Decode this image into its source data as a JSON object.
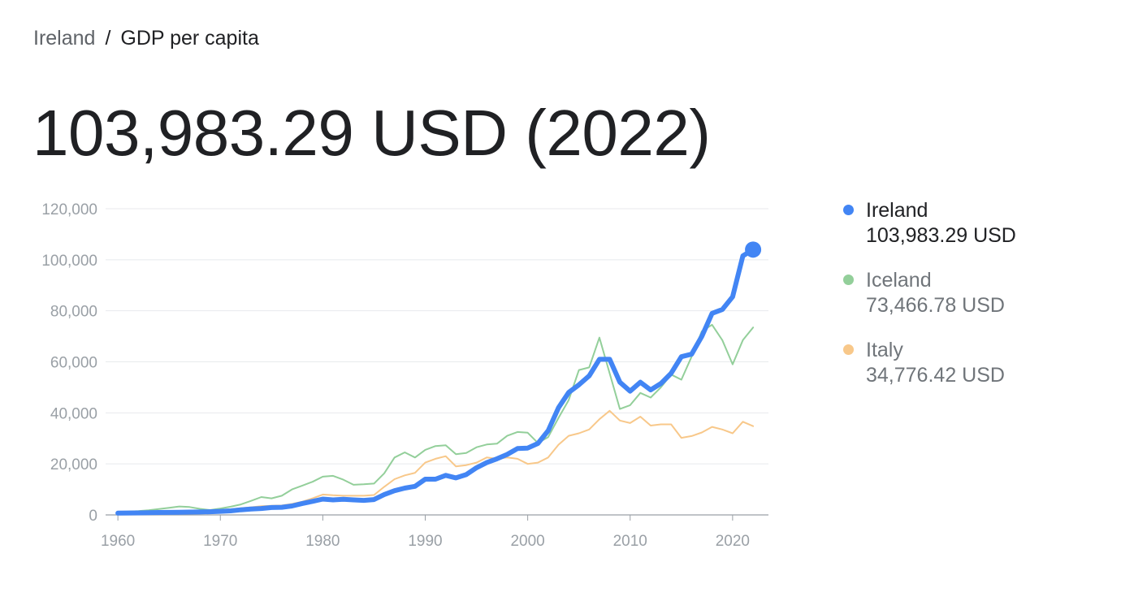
{
  "breadcrumb": {
    "country": "Ireland",
    "separator": "/",
    "metric": "GDP per capita"
  },
  "headline": "103,983.29 USD (2022)",
  "legend": [
    {
      "name": "Ireland",
      "value": "103,983.29 USD",
      "color": "#4285f4",
      "active": true
    },
    {
      "name": "Iceland",
      "value": "73,466.78 USD",
      "color": "#93cf9a",
      "active": false
    },
    {
      "name": "Italy",
      "value": "34,776.42 USD",
      "color": "#f8c88a",
      "active": false
    }
  ],
  "chart_data": {
    "type": "line",
    "x": [
      1960,
      1961,
      1962,
      1963,
      1964,
      1965,
      1966,
      1967,
      1968,
      1969,
      1970,
      1971,
      1972,
      1973,
      1974,
      1975,
      1976,
      1977,
      1978,
      1979,
      1980,
      1981,
      1982,
      1983,
      1984,
      1985,
      1986,
      1987,
      1988,
      1989,
      1990,
      1991,
      1992,
      1993,
      1994,
      1995,
      1996,
      1997,
      1998,
      1999,
      2000,
      2001,
      2002,
      2003,
      2004,
      2005,
      2006,
      2007,
      2008,
      2009,
      2010,
      2011,
      2012,
      2013,
      2014,
      2015,
      2016,
      2017,
      2018,
      2019,
      2020,
      2021,
      2022
    ],
    "xticks": [
      1960,
      1970,
      1980,
      1990,
      2000,
      2010,
      2020
    ],
    "ylim": [
      0,
      120000
    ],
    "yticks": [
      0,
      20000,
      40000,
      60000,
      80000,
      100000,
      120000
    ],
    "ytick_labels": [
      "0",
      "20,000",
      "40,000",
      "60,000",
      "80,000",
      "100,000",
      "120,000"
    ],
    "grid": true,
    "legend_position": "right",
    "series": [
      {
        "name": "Iceland",
        "color": "#93cf9a",
        "values": [
          1100,
          1300,
          1500,
          1800,
          2300,
          2800,
          3300,
          3100,
          2400,
          1900,
          2500,
          3200,
          4100,
          5500,
          7000,
          6500,
          7500,
          10000,
          11500,
          13000,
          15000,
          15300,
          13800,
          11800,
          12000,
          12300,
          16300,
          22500,
          24500,
          22500,
          25500,
          27000,
          27300,
          23800,
          24300,
          26500,
          27600,
          27900,
          31000,
          32500,
          32200,
          28200,
          30500,
          38000,
          45000,
          56800,
          57800,
          69500,
          55500,
          41500,
          43000,
          47800,
          46000,
          50000,
          55000,
          53000,
          62000,
          72000,
          74500,
          68500,
          59000,
          68500,
          73466.78
        ]
      },
      {
        "name": "Italy",
        "color": "#f8c88a",
        "values": [
          800,
          900,
          1000,
          1100,
          1200,
          1300,
          1400,
          1500,
          1600,
          1750,
          2000,
          2200,
          2600,
          3000,
          3400,
          3600,
          3700,
          4300,
          5200,
          6500,
          8000,
          7700,
          7500,
          7500,
          7500,
          7800,
          11000,
          14000,
          15500,
          16500,
          20500,
          22000,
          23000,
          19000,
          19500,
          20500,
          22500,
          22000,
          22500,
          22000,
          20000,
          20500,
          22500,
          27500,
          31000,
          32000,
          33500,
          37500,
          40800,
          37000,
          36000,
          38500,
          35000,
          35500,
          35500,
          30200,
          30900,
          32300,
          34500,
          33500,
          32000,
          36500,
          34776.42
        ]
      },
      {
        "name": "Ireland",
        "color": "#4285f4",
        "values": [
          700,
          750,
          800,
          850,
          950,
          1000,
          1050,
          1100,
          1150,
          1250,
          1400,
          1600,
          2000,
          2300,
          2500,
          2900,
          3000,
          3500,
          4500,
          5300,
          6200,
          5900,
          6100,
          5900,
          5700,
          6000,
          8000,
          9500,
          10500,
          11200,
          14000,
          14000,
          15500,
          14500,
          15800,
          18500,
          20500,
          22000,
          23700,
          26000,
          26200,
          28000,
          33000,
          42000,
          48000,
          51000,
          54500,
          61000,
          61000,
          52000,
          48500,
          52000,
          49000,
          51500,
          55500,
          62000,
          63000,
          70000,
          79000,
          80500,
          85500,
          101500,
          103983.29
        ]
      }
    ]
  }
}
